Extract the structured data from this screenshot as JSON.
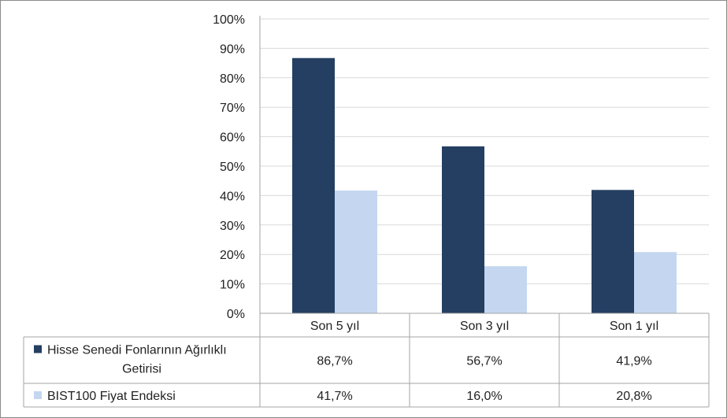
{
  "chart_data": {
    "type": "bar",
    "categories": [
      "Son 5 yıl",
      "Son 3 yıl",
      "Son 1 yıl"
    ],
    "series": [
      {
        "name_lines": [
          "Hisse Senedi Fonlarının Ağırlıklı",
          "Getirisi"
        ],
        "values": [
          86.7,
          56.7,
          41.9
        ],
        "labels": [
          "86,7%",
          "56,7%",
          "41,9%"
        ],
        "color": "#253f62"
      },
      {
        "name_lines": [
          "BIST100 Fiyat Endeksi"
        ],
        "values": [
          41.7,
          16.0,
          20.8
        ],
        "labels": [
          "41,7%",
          "16,0%",
          "20,8%"
        ],
        "color": "#c5d7f0"
      }
    ],
    "ylim": [
      0,
      100
    ],
    "yticks": [
      "0%",
      "10%",
      "20%",
      "30%",
      "40%",
      "50%",
      "60%",
      "70%",
      "80%",
      "90%",
      "100%"
    ],
    "grid": true,
    "legend": "data-table"
  }
}
